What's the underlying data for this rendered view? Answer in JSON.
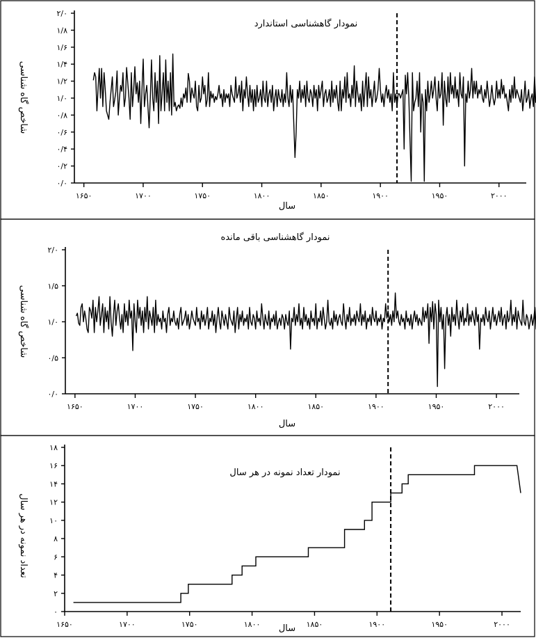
{
  "chart_data": [
    {
      "type": "line",
      "title": "نمودار گاهشناسی استاندارد",
      "xlabel": "سال",
      "ylabel": "شاخص گاه شناسی",
      "x_ticks": [
        1650,
        1700,
        1750,
        1800,
        1850,
        1900,
        1950,
        2000
      ],
      "x_tick_labels": [
        "۱۶۵۰",
        "۱۷۰۰",
        "۱۷۵۰",
        "۱۸۰۰",
        "۱۸۵۰",
        "۱۹۰۰",
        "۱۹۵۰",
        "۲۰۰۰"
      ],
      "y_ticks": [
        0,
        0.2,
        0.4,
        0.6,
        0.8,
        1.0,
        1.2,
        1.4,
        1.6,
        1.8,
        2.0
      ],
      "y_tick_labels": [
        "۰/۰",
        "۰/۲",
        "۰/۴",
        "۰/۶",
        "۰/۸",
        "۱/۰",
        "۱/۲",
        "۱/۴",
        "۱/۶",
        "۱/۸",
        "۲/۰"
      ],
      "xlim": [
        1642,
        2023
      ],
      "ylim": [
        0,
        2.0
      ],
      "vertical_marker_x": 1914,
      "x_start": 1658,
      "x_step": 1,
      "values": [
        1.21,
        1.3,
        1.25,
        0.85,
        1.12,
        1.35,
        1.0,
        1.35,
        0.9,
        1.3,
        1.1,
        0.85,
        0.8,
        0.75,
        0.95,
        1.1,
        1.25,
        0.9,
        0.98,
        1.08,
        1.32,
        0.8,
        1.0,
        1.15,
        1.08,
        1.3,
        0.9,
        1.0,
        1.36,
        1.18,
        1.0,
        0.75,
        1.3,
        0.9,
        1.1,
        1.37,
        1.05,
        1.18,
        0.95,
        1.2,
        0.7,
        1.1,
        1.46,
        0.9,
        1.05,
        1.15,
        0.9,
        0.65,
        1.0,
        1.45,
        1.0,
        0.85,
        1.3,
        0.95,
        1.2,
        0.7,
        1.5,
        0.85,
        1.05,
        1.3,
        0.85,
        1.45,
        0.95,
        1.2,
        0.85,
        1.3,
        0.8,
        1.52,
        0.9,
        0.95,
        0.85,
        0.9,
        0.92,
        0.88,
        1.0,
        0.9,
        1.05,
        1.0,
        1.12,
        0.95,
        1.29,
        1.2,
        0.95,
        1.12,
        1.05,
        1.0,
        1.2,
        0.9,
        0.85,
        1.15,
        0.95,
        1.0,
        1.25,
        1.05,
        1.15,
        0.9,
        0.98,
        1.3,
        0.9,
        1.08,
        1.0,
        1.05,
        0.95,
        1.02,
        0.98,
        1.05,
        1.15,
        1.0,
        1.05,
        0.9,
        1.1,
        0.95,
        1.05,
        1.0,
        1.05,
        0.9,
        1.15,
        1.05,
        1.0,
        0.95,
        1.25,
        1.0,
        1.05,
        1.15,
        0.95,
        1.2,
        0.85,
        1.1,
        1.0,
        1.25,
        1.05,
        0.9,
        1.15,
        0.95,
        1.1,
        0.85,
        1.1,
        0.9,
        1.15,
        0.95,
        1.0,
        1.1,
        0.9,
        1.2,
        1.0,
        0.95,
        1.2,
        0.9,
        1.05,
        1.1,
        0.95,
        1.15,
        0.85,
        1.0,
        1.1,
        0.9,
        1.1,
        1.0,
        0.95,
        1.1,
        0.9,
        1.05,
        0.95,
        1.3,
        1.0,
        0.9,
        1.15,
        0.95,
        1.1,
        0.7,
        0.3,
        0.6,
        1.1,
        1.0,
        1.2,
        0.95,
        1.1,
        1.0,
        1.15,
        0.9,
        1.2,
        1.0,
        0.95,
        1.1,
        1.05,
        0.9,
        1.15,
        1.0,
        1.1,
        0.85,
        1.15,
        1.0,
        1.1,
        1.2,
        0.9,
        1.05,
        1.1,
        0.95,
        1.0,
        1.1,
        0.9,
        1.2,
        0.95,
        1.1,
        1.0,
        1.15,
        0.95,
        0.85,
        1.2,
        0.85,
        1.1,
        1.0,
        1.25,
        0.95,
        1.3,
        1.0,
        1.05,
        0.9,
        1.15,
        1.0,
        1.38,
        0.9,
        1.2,
        1.05,
        0.95,
        1.05,
        0.85,
        1.2,
        0.9,
        1.1,
        1.3,
        0.9,
        1.25,
        1.0,
        1.1,
        0.9,
        1.05,
        1.2,
        0.95,
        1.0,
        1.1,
        1.35,
        1.1,
        0.95,
        1.05,
        0.9,
        1.05,
        1.15,
        1.0,
        1.1,
        0.95,
        1.05,
        0.85,
        1.3,
        0.95,
        1.05,
        0.9,
        1.05,
        1.05,
        1.0,
        1.05,
        1.1,
        0.4,
        1.27,
        1.05,
        1.3,
        1.0,
        0.5,
        0.02,
        1.3,
        0.85,
        0.95,
        1.0,
        1.2,
        0.9,
        1.3,
        0.6,
        1.05,
        0.95,
        0.02,
        1.1,
        0.85,
        1.2,
        0.95,
        1.05,
        1.2,
        1.0,
        1.1,
        1.25,
        1.0,
        0.85,
        1.2,
        1.0,
        1.05,
        1.3,
        0.68,
        1.2,
        1.0,
        0.9,
        1.25,
        0.95,
        1.3,
        1.05,
        1.15,
        1.0,
        1.25,
        1.0,
        1.1,
        0.9,
        1.3,
        1.05,
        1.0,
        1.25,
        0.2,
        1.05,
        0.95,
        1.2,
        1.0,
        1.1,
        1.35,
        1.0,
        1.2,
        1.05,
        1.2,
        1.0,
        1.1,
        1.05,
        1.15,
        1.0,
        0.95,
        1.1,
        1.0,
        1.2,
        1.05,
        0.9,
        1.0,
        1.15,
        1.0,
        0.92,
        1.0,
        1.2,
        1.0,
        1.1,
        1.0,
        1.22,
        1.05,
        1.15,
        1.0,
        1.05,
        0.95,
        0.85,
        1.1,
        0.95,
        1.15,
        1.0,
        1.25,
        1.0,
        1.1,
        1.05,
        1.0,
        0.95,
        1.1,
        0.85,
        1.0,
        1.2,
        0.95,
        1.0,
        1.1,
        0.88,
        1.0,
        1.05,
        0.9,
        1.25,
        0.95,
        1.0,
        0.85
      ]
    },
    {
      "type": "line",
      "title": "نمودار گاهشناسی باقی مانده",
      "xlabel": "سال",
      "ylabel": "شاخص گاه شناسی",
      "x_ticks": [
        1650,
        1700,
        1750,
        1800,
        1850,
        1900,
        1950,
        2000
      ],
      "x_tick_labels": [
        "۱۶۵۰",
        "۱۷۰۰",
        "۱۷۵۰",
        "۱۸۰۰",
        "۱۸۵۰",
        "۱۹۰۰",
        "۱۹۵۰",
        "۲۰۰۰"
      ],
      "y_ticks": [
        0,
        0.5,
        1.0,
        1.5,
        2.0
      ],
      "y_tick_labels": [
        "۰/۰",
        "۰/۵",
        "۱/۰",
        "۱/۵",
        "۲/۰"
      ],
      "xlim": [
        1642,
        2019
      ],
      "ylim": [
        0,
        2.0
      ],
      "vertical_marker_x": 1910,
      "x_start": 1651,
      "x_step": 1,
      "values": [
        1.08,
        1.12,
        0.98,
        0.95,
        1.2,
        1.25,
        1.0,
        1.15,
        1.05,
        0.9,
        0.85,
        1.2,
        1.15,
        1.05,
        1.3,
        0.85,
        1.2,
        1.0,
        1.15,
        1.35,
        0.95,
        1.1,
        1.25,
        0.85,
        1.2,
        1.0,
        1.15,
        0.9,
        1.35,
        1.0,
        0.8,
        1.1,
        1.3,
        0.95,
        1.15,
        1.25,
        1.05,
        0.9,
        1.1,
        0.85,
        1.25,
        1.0,
        1.15,
        0.95,
        1.3,
        1.05,
        1.15,
        0.6,
        1.25,
        1.0,
        0.85,
        1.3,
        1.05,
        1.2,
        0.95,
        1.15,
        0.85,
        1.2,
        1.0,
        1.35,
        0.9,
        1.15,
        1.05,
        0.95,
        1.2,
        0.85,
        1.3,
        0.95,
        1.1,
        1.0,
        1.05,
        0.9,
        1.15,
        1.0,
        1.05,
        0.85,
        1.1,
        1.2,
        0.95,
        1.05,
        1.0,
        1.15,
        1.0,
        0.95,
        1.05,
        0.9,
        1.1,
        1.2,
        0.95,
        1.0,
        1.05,
        1.15,
        0.95,
        1.1,
        0.9,
        1.0,
        1.15,
        1.05,
        1.0,
        0.95,
        1.2,
        1.0,
        1.05,
        0.9,
        1.15,
        1.0,
        1.1,
        0.95,
        1.05,
        1.2,
        0.9,
        1.05,
        1.0,
        1.15,
        0.95,
        1.1,
        0.85,
        1.05,
        1.2,
        1.0,
        0.9,
        1.15,
        1.05,
        0.95,
        1.1,
        1.0,
        0.9,
        1.2,
        1.05,
        1.0,
        0.95,
        1.15,
        0.85,
        1.05,
        1.2,
        0.9,
        1.1,
        1.0,
        1.15,
        0.95,
        1.05,
        1.0,
        1.1,
        0.9,
        1.2,
        1.0,
        0.95,
        1.1,
        1.05,
        0.9,
        1.15,
        1.0,
        1.05,
        0.95,
        1.25,
        1.05,
        0.9,
        1.1,
        1.0,
        0.95,
        1.15,
        0.9,
        1.05,
        1.0,
        1.1,
        0.95,
        1.15,
        0.9,
        1.0,
        1.05,
        0.95,
        1.1,
        1.05,
        0.9,
        1.1,
        1.0,
        0.95,
        1.15,
        0.62,
        1.05,
        1.0,
        1.2,
        0.95,
        1.1,
        1.0,
        1.25,
        0.95,
        1.05,
        0.9,
        1.2,
        1.0,
        1.1,
        0.95,
        1.05,
        0.9,
        1.15,
        1.0,
        1.05,
        0.95,
        1.25,
        0.9,
        1.05,
        1.0,
        1.15,
        0.95,
        1.2,
        1.05,
        0.9,
        1.0,
        1.3,
        1.0,
        0.95,
        1.05,
        0.9,
        1.15,
        1.0,
        1.1,
        0.95,
        1.05,
        1.1,
        1.0,
        0.95,
        1.25,
        1.05,
        0.9,
        1.1,
        1.0,
        1.2,
        0.95,
        1.05,
        1.0,
        1.1,
        0.95,
        1.15,
        1.05,
        1.0,
        1.25,
        0.95,
        1.1,
        1.0,
        1.15,
        0.9,
        1.05,
        1.0,
        1.1,
        0.95,
        1.2,
        1.05,
        1.0,
        1.15,
        0.95,
        1.05,
        1.0,
        1.1,
        0.9,
        1.05,
        1.0,
        1.25,
        1.05,
        1.15,
        1.0,
        1.1,
        0.95,
        1.15,
        1.0,
        1.4,
        1.05,
        1.15,
        1.0,
        0.95,
        1.1,
        1.0,
        1.05,
        0.9,
        1.15,
        1.0,
        1.05,
        0.95,
        1.1,
        0.9,
        1.05,
        1.15,
        1.0,
        1.1,
        0.95,
        1.05,
        1.0,
        0.95,
        1.2,
        1.0,
        1.15,
        1.05,
        1.25,
        0.7,
        1.2,
        1.0,
        1.28,
        0.9,
        1.25,
        1.1,
        0.1,
        1.3,
        1.0,
        1.2,
        0.9,
        1.1,
        0.35,
        1.05,
        1.2,
        0.95,
        1.1,
        0.8,
        1.2,
        1.0,
        1.1,
        0.95,
        1.3,
        1.05,
        0.9,
        1.15,
        1.0,
        1.2,
        0.95,
        1.05,
        1.0,
        1.25,
        0.95,
        1.1,
        1.0,
        1.15,
        1.05,
        0.95,
        1.2,
        1.0,
        1.1,
        0.62,
        1.05,
        1.0,
        1.1,
        0.95,
        1.2,
        1.05,
        1.0,
        1.15,
        0.9,
        1.05,
        1.2,
        1.0,
        1.1,
        0.95,
        1.05,
        1.15,
        1.0,
        1.2,
        0.95,
        1.05,
        1.1,
        0.9,
        1.15,
        1.0,
        1.05,
        1.3,
        0.95,
        1.1,
        1.0,
        1.2,
        0.9,
        1.15,
        1.05,
        1.0,
        0.95,
        1.3,
        1.0,
        0.95,
        1.1,
        1.05,
        0.9,
        1.0,
        1.1,
        0.95,
        1.05,
        1.2,
        0.9,
        1.05,
        1.0,
        1.3,
        0.95,
        1.1,
        1.0,
        1.15,
        1.0,
        1.0,
        1.05
      ]
    },
    {
      "type": "line",
      "step": true,
      "title": "نمودار تعداد نمونه در هر سال",
      "xlabel": "سال",
      "ylabel": "تعداد نمونه در هر سال",
      "x_ticks": [
        1650,
        1700,
        1750,
        1800,
        1850,
        1900,
        1950,
        2000
      ],
      "x_tick_labels": [
        "۱۶۵۰",
        "۱۷۰۰",
        "۱۷۵۰",
        "۱۸۰۰",
        "۱۸۵۰",
        "۱۹۰۰",
        "۱۹۵۰",
        "۲۰۰۰"
      ],
      "y_ticks": [
        0,
        2,
        4,
        6,
        8,
        10,
        12,
        14,
        16,
        18
      ],
      "y_tick_labels": [
        "۰",
        "۲",
        "۴",
        "۶",
        "۸",
        "۱۰",
        "۱۲",
        "۱۴",
        "۱۶",
        "۱۸"
      ],
      "xlim": [
        1650,
        2015
      ],
      "ylim": [
        0,
        18
      ],
      "vertical_marker_x": 1911,
      "x": [
        1657,
        1743,
        1743,
        1749,
        1749,
        1784,
        1784,
        1792,
        1792,
        1803,
        1803,
        1845,
        1845,
        1874,
        1874,
        1890,
        1890,
        1896,
        1896,
        1911,
        1911,
        1920,
        1920,
        1925,
        1925,
        1978,
        1978,
        2012,
        2015
      ],
      "y": [
        1,
        1,
        2,
        2,
        3,
        3,
        4,
        4,
        5,
        5,
        6,
        6,
        7,
        7,
        9,
        9,
        10,
        10,
        12,
        12,
        13,
        13,
        14,
        14,
        15,
        15,
        16,
        16,
        13
      ]
    }
  ]
}
